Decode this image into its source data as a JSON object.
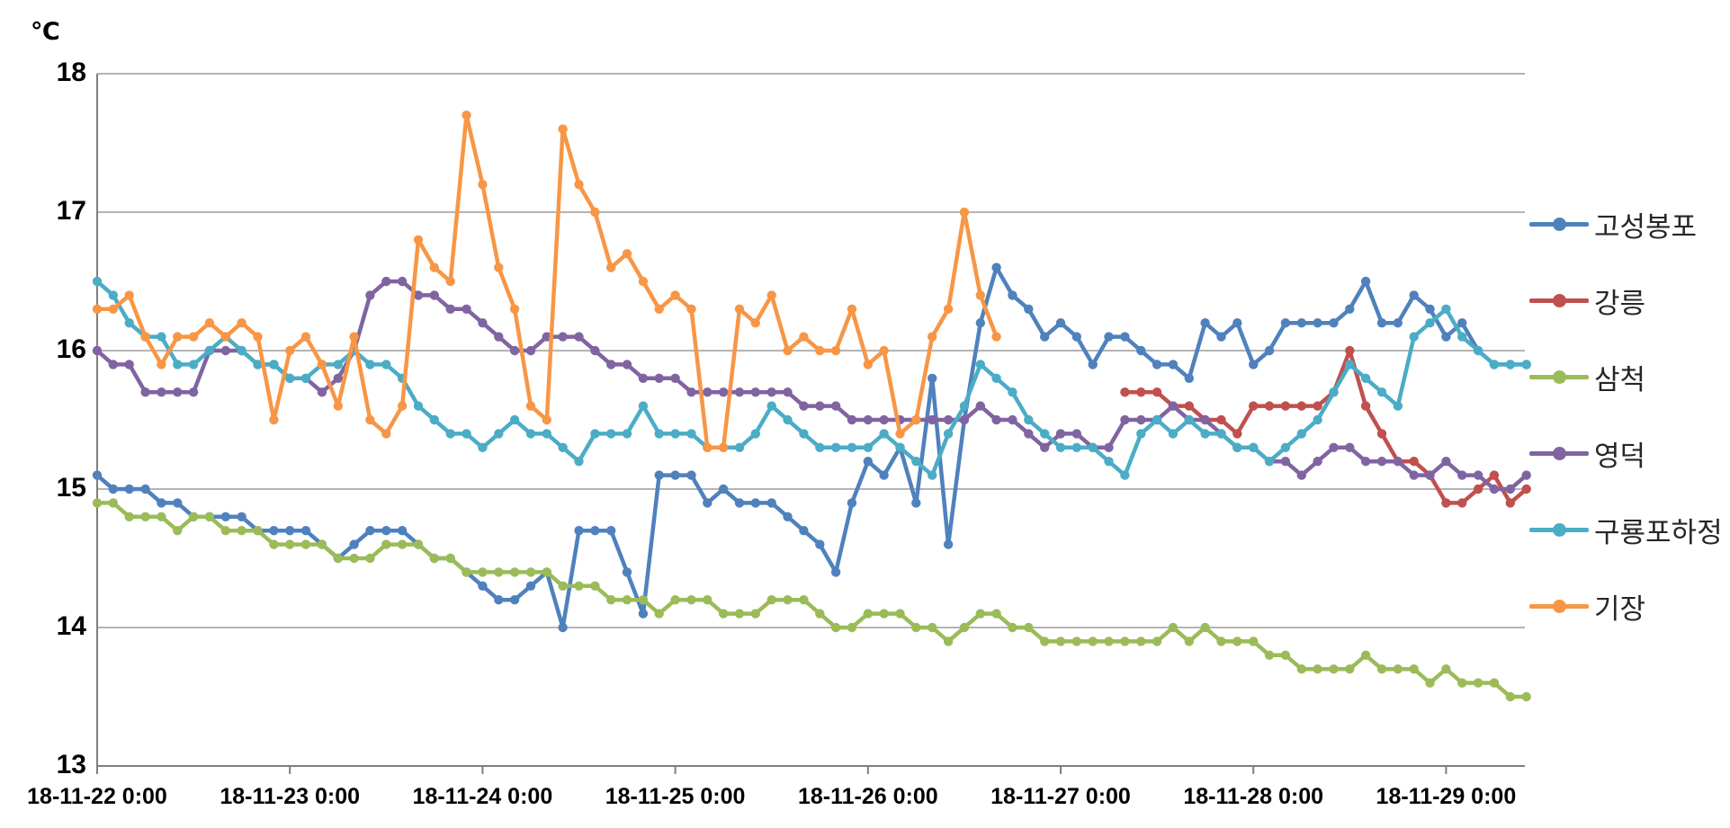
{
  "chart": {
    "unit_label": "℃"
  },
  "chart_data": {
    "type": "line",
    "title": "",
    "ylabel": "℃",
    "xlabel": "",
    "ylim": [
      13,
      18
    ],
    "y_ticks": [
      13,
      14,
      15,
      16,
      17,
      18
    ],
    "grid": "horizontal",
    "legend_position": "right",
    "x_tick_labels": [
      "18-11-22 0:00",
      "18-11-23 0:00",
      "18-11-24 0:00",
      "18-11-25 0:00",
      "18-11-26 0:00",
      "18-11-27 0:00",
      "18-11-28 0:00",
      "18-11-29 0:00"
    ],
    "x_start": "18-11-22 0:00",
    "sample_interval_hours": 2,
    "series": [
      {
        "name": "고성봉포",
        "color": "#4F81BD",
        "values": [
          15.1,
          15.0,
          15.0,
          15.0,
          14.9,
          14.9,
          14.8,
          14.8,
          14.8,
          14.8,
          14.7,
          14.7,
          14.7,
          14.7,
          14.6,
          14.5,
          14.6,
          14.7,
          14.7,
          14.7,
          14.6,
          14.5,
          14.5,
          14.4,
          14.3,
          14.2,
          14.2,
          14.3,
          14.4,
          14.0,
          14.7,
          14.7,
          14.7,
          14.4,
          14.1,
          15.1,
          15.1,
          15.1,
          14.9,
          15.0,
          14.9,
          14.9,
          14.9,
          14.8,
          14.7,
          14.6,
          14.4,
          14.9,
          15.2,
          15.1,
          15.3,
          14.9,
          15.8,
          14.6,
          15.5,
          16.2,
          16.6,
          16.4,
          16.3,
          16.1,
          16.2,
          16.1,
          15.9,
          16.1,
          16.1,
          16.0,
          15.9,
          15.9,
          15.8,
          16.2,
          16.1,
          16.2,
          15.9,
          16.0,
          16.2,
          16.2,
          16.2,
          16.2,
          16.3,
          16.5,
          16.2,
          16.2,
          16.4,
          16.3,
          16.1,
          16.2,
          16.0,
          15.9,
          15.9,
          15.9
        ]
      },
      {
        "name": "강릉",
        "color": "#C0504D",
        "values": [
          null,
          null,
          null,
          null,
          null,
          null,
          null,
          null,
          null,
          null,
          null,
          null,
          null,
          null,
          null,
          null,
          null,
          null,
          null,
          null,
          null,
          null,
          null,
          null,
          null,
          null,
          null,
          null,
          null,
          null,
          null,
          null,
          null,
          null,
          null,
          null,
          null,
          null,
          null,
          null,
          null,
          null,
          null,
          null,
          null,
          null,
          null,
          null,
          null,
          null,
          null,
          null,
          null,
          null,
          null,
          null,
          null,
          null,
          null,
          null,
          null,
          null,
          null,
          null,
          15.7,
          15.7,
          15.7,
          15.6,
          15.6,
          15.5,
          15.5,
          15.4,
          15.6,
          15.6,
          15.6,
          15.6,
          15.6,
          15.7,
          16.0,
          15.6,
          15.4,
          15.2,
          15.2,
          15.1,
          14.9,
          14.9,
          15.0,
          15.1,
          14.9,
          15.0
        ]
      },
      {
        "name": "삼척",
        "color": "#9BBB59",
        "values": [
          14.9,
          14.9,
          14.8,
          14.8,
          14.8,
          14.7,
          14.8,
          14.8,
          14.7,
          14.7,
          14.7,
          14.6,
          14.6,
          14.6,
          14.6,
          14.5,
          14.5,
          14.5,
          14.6,
          14.6,
          14.6,
          14.5,
          14.5,
          14.4,
          14.4,
          14.4,
          14.4,
          14.4,
          14.4,
          14.3,
          14.3,
          14.3,
          14.2,
          14.2,
          14.2,
          14.1,
          14.2,
          14.2,
          14.2,
          14.1,
          14.1,
          14.1,
          14.2,
          14.2,
          14.2,
          14.1,
          14.0,
          14.0,
          14.1,
          14.1,
          14.1,
          14.0,
          14.0,
          13.9,
          14.0,
          14.1,
          14.1,
          14.0,
          14.0,
          13.9,
          13.9,
          13.9,
          13.9,
          13.9,
          13.9,
          13.9,
          13.9,
          14.0,
          13.9,
          14.0,
          13.9,
          13.9,
          13.9,
          13.8,
          13.8,
          13.7,
          13.7,
          13.7,
          13.7,
          13.8,
          13.7,
          13.7,
          13.7,
          13.6,
          13.7,
          13.6,
          13.6,
          13.6,
          13.5,
          13.5
        ]
      },
      {
        "name": "영덕",
        "color": "#8064A2",
        "values": [
          16.0,
          15.9,
          15.9,
          15.7,
          15.7,
          15.7,
          15.7,
          16.0,
          16.0,
          16.0,
          15.9,
          15.9,
          15.8,
          15.8,
          15.7,
          15.8,
          16.0,
          16.4,
          16.5,
          16.5,
          16.4,
          16.4,
          16.3,
          16.3,
          16.2,
          16.1,
          16.0,
          16.0,
          16.1,
          16.1,
          16.1,
          16.0,
          15.9,
          15.9,
          15.8,
          15.8,
          15.8,
          15.7,
          15.7,
          15.7,
          15.7,
          15.7,
          15.7,
          15.7,
          15.6,
          15.6,
          15.6,
          15.5,
          15.5,
          15.5,
          15.5,
          15.5,
          15.5,
          15.5,
          15.5,
          15.6,
          15.5,
          15.5,
          15.4,
          15.3,
          15.4,
          15.4,
          15.3,
          15.3,
          15.5,
          15.5,
          15.5,
          15.6,
          15.5,
          15.5,
          15.4,
          15.3,
          15.3,
          15.2,
          15.2,
          15.1,
          15.2,
          15.3,
          15.3,
          15.2,
          15.2,
          15.2,
          15.1,
          15.1,
          15.2,
          15.1,
          15.1,
          15.0,
          15.0,
          15.1
        ]
      },
      {
        "name": "구룡포하정",
        "color": "#4BACC6",
        "values": [
          16.5,
          16.4,
          16.2,
          16.1,
          16.1,
          15.9,
          15.9,
          16.0,
          16.1,
          16.0,
          15.9,
          15.9,
          15.8,
          15.8,
          15.9,
          15.9,
          16.0,
          15.9,
          15.9,
          15.8,
          15.6,
          15.5,
          15.4,
          15.4,
          15.3,
          15.4,
          15.5,
          15.4,
          15.4,
          15.3,
          15.2,
          15.4,
          15.4,
          15.4,
          15.6,
          15.4,
          15.4,
          15.4,
          15.3,
          15.3,
          15.3,
          15.4,
          15.6,
          15.5,
          15.4,
          15.3,
          15.3,
          15.3,
          15.3,
          15.4,
          15.3,
          15.2,
          15.1,
          15.4,
          15.6,
          15.9,
          15.8,
          15.7,
          15.5,
          15.4,
          15.3,
          15.3,
          15.3,
          15.2,
          15.1,
          15.4,
          15.5,
          15.4,
          15.5,
          15.4,
          15.4,
          15.3,
          15.3,
          15.2,
          15.3,
          15.4,
          15.5,
          15.7,
          15.9,
          15.8,
          15.7,
          15.6,
          16.1,
          16.2,
          16.3,
          16.1,
          16.0,
          15.9,
          15.9,
          15.9
        ]
      },
      {
        "name": "기장",
        "color": "#F79646",
        "values": [
          16.3,
          16.3,
          16.4,
          16.1,
          15.9,
          16.1,
          16.1,
          16.2,
          16.1,
          16.2,
          16.1,
          15.5,
          16.0,
          16.1,
          15.9,
          15.6,
          16.1,
          15.5,
          15.4,
          15.6,
          16.8,
          16.6,
          16.5,
          17.7,
          17.2,
          16.6,
          16.3,
          15.6,
          15.5,
          17.6,
          17.2,
          17.0,
          16.6,
          16.7,
          16.5,
          16.3,
          16.4,
          16.3,
          15.3,
          15.3,
          16.3,
          16.2,
          16.4,
          16.0,
          16.1,
          16.0,
          16.0,
          16.3,
          15.9,
          16.0,
          15.4,
          15.5,
          16.1,
          16.3,
          17.0,
          16.4,
          16.1,
          null,
          null,
          null,
          null,
          null,
          null,
          null,
          null,
          null,
          null,
          null,
          null,
          null,
          null,
          null,
          null,
          null,
          null,
          null,
          null,
          null,
          null,
          null,
          null,
          null,
          null,
          null,
          null,
          null,
          null,
          null,
          null,
          null
        ]
      }
    ]
  }
}
